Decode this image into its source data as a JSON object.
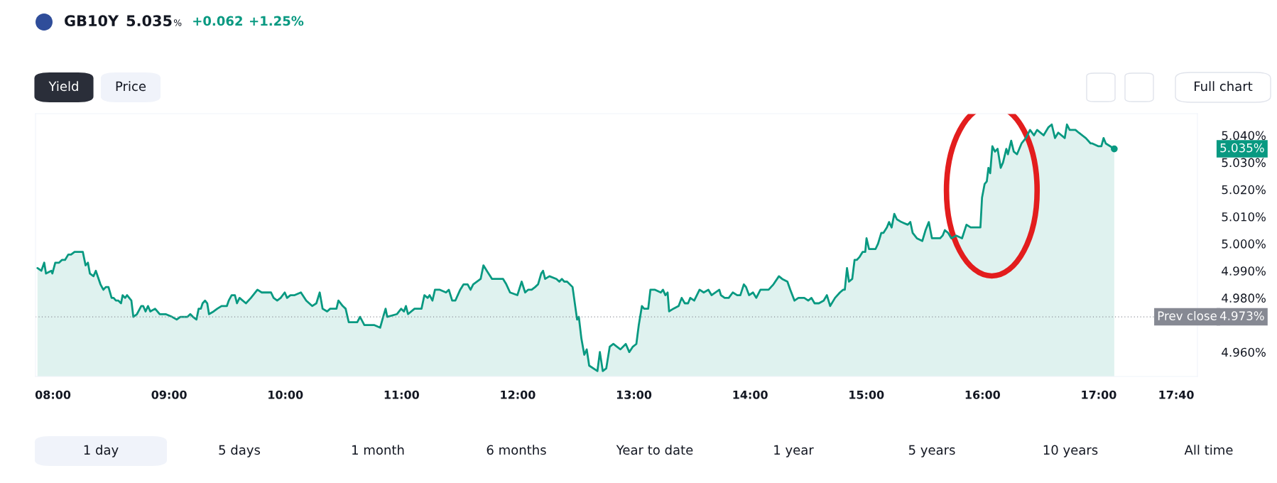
{
  "chart_data": {
    "type": "area",
    "title": "GB10Y",
    "x": [
      7.867,
      7.9,
      7.925,
      7.94,
      7.986,
      7.995,
      8.02,
      8.053,
      8.077,
      8.104,
      8.132,
      8.156,
      8.186,
      8.223,
      8.257,
      8.281,
      8.301,
      8.318,
      8.349,
      8.369,
      8.409,
      8.434,
      8.455,
      8.478,
      8.505,
      8.522,
      8.542,
      8.563,
      8.586,
      8.6,
      8.621,
      8.638,
      8.675,
      8.692,
      8.723,
      8.76,
      8.777,
      8.797,
      8.818,
      8.838,
      8.879,
      8.919,
      8.97,
      9.025,
      9.065,
      9.097,
      9.127,
      9.158,
      9.182,
      9.205,
      9.235,
      9.254,
      9.273,
      9.288,
      9.309,
      9.328,
      9.343,
      9.383,
      9.414,
      9.451,
      9.497,
      9.513,
      9.538,
      9.566,
      9.584,
      9.606,
      9.661,
      9.704,
      9.76,
      9.797,
      9.828,
      9.877,
      9.899,
      9.93,
      9.96,
      9.995,
      10.015,
      10.044,
      10.08,
      10.134,
      10.18,
      10.231,
      10.267,
      10.296,
      10.321,
      10.36,
      10.386,
      10.44,
      10.457,
      10.494,
      10.519,
      10.546,
      10.619,
      10.643,
      10.68,
      10.763,
      10.816,
      10.842,
      10.863,
      10.877,
      10.96,
      10.997,
      11.021,
      11.038,
      11.056,
      11.112,
      11.172,
      11.197,
      11.225,
      11.242,
      11.266,
      11.288,
      11.33,
      11.383,
      11.407,
      11.436,
      11.463,
      11.505,
      11.534,
      11.569,
      11.594,
      11.617,
      11.681,
      11.705,
      11.734,
      11.779,
      11.85,
      11.874,
      11.902,
      11.934,
      11.997,
      12.034,
      12.064,
      12.089,
      12.12,
      12.15,
      12.175,
      12.202,
      12.218,
      12.236,
      12.273,
      12.333,
      12.358,
      12.38,
      12.401,
      12.425,
      12.472,
      12.511,
      12.526,
      12.548,
      12.573,
      12.594,
      12.615,
      12.686,
      12.707,
      12.732,
      12.762,
      12.792,
      12.823,
      12.854,
      12.884,
      12.93,
      12.96,
      12.991,
      13.021,
      13.042,
      13.069,
      13.088,
      13.123,
      13.142,
      13.182,
      13.231,
      13.25,
      13.271,
      13.29,
      13.303,
      13.339,
      13.385,
      13.411,
      13.438,
      13.466,
      13.485,
      13.519,
      13.565,
      13.601,
      13.641,
      13.668,
      13.735,
      13.749,
      13.781,
      13.816,
      13.851,
      13.889,
      13.916,
      13.946,
      13.965,
      13.991,
      14.025,
      14.053,
      14.089,
      14.108,
      14.159,
      14.201,
      14.248,
      14.276,
      14.321,
      14.346,
      14.382,
      14.416,
      14.466,
      14.5,
      14.528,
      14.555,
      14.592,
      14.633,
      14.661,
      14.689,
      14.731,
      14.773,
      14.801,
      14.815,
      14.834,
      14.851,
      14.879,
      14.899,
      14.918,
      14.94,
      14.969,
      14.991,
      15.002,
      15.024,
      15.052,
      15.079,
      15.101,
      15.129,
      15.148,
      15.177,
      15.196,
      15.218,
      15.241,
      15.263,
      15.302,
      15.357,
      15.379,
      15.399,
      15.435,
      15.482,
      15.51,
      15.538,
      15.565,
      15.635,
      15.657,
      15.676,
      15.704,
      15.732,
      15.774,
      15.824,
      15.862,
      15.898,
      15.946,
      15.982,
      15.996,
      16.018,
      16.037,
      16.051,
      16.066,
      16.085,
      16.107,
      16.13,
      16.157,
      16.177,
      16.205,
      16.219,
      16.247,
      16.269,
      16.297,
      16.336,
      16.373,
      16.409,
      16.443,
      16.47,
      16.526,
      16.568,
      16.596,
      16.624,
      16.652,
      16.708,
      16.727,
      16.75,
      16.8,
      16.828,
      16.889,
      16.931,
      16.945,
      16.995,
      17.023,
      17.042,
      17.061,
      17.098,
      17.134
    ],
    "series": [
      {
        "color": "#089981",
        "values": [
          4.991,
          4.99,
          4.993,
          4.989,
          4.99,
          4.989,
          4.993,
          4.993,
          4.994,
          4.994,
          4.996,
          4.996,
          4.997,
          4.997,
          4.997,
          4.992,
          4.993,
          4.989,
          4.988,
          4.99,
          4.985,
          4.983,
          4.984,
          4.984,
          4.98,
          4.98,
          4.979,
          4.979,
          4.978,
          4.981,
          4.98,
          4.981,
          4.979,
          4.973,
          4.974,
          4.977,
          4.977,
          4.975,
          4.977,
          4.975,
          4.976,
          4.974,
          4.974,
          4.973,
          4.972,
          4.973,
          4.973,
          4.973,
          4.974,
          4.973,
          4.972,
          4.976,
          4.976,
          4.978,
          4.979,
          4.978,
          4.974,
          4.975,
          4.976,
          4.977,
          4.977,
          4.979,
          4.981,
          4.981,
          4.978,
          4.98,
          4.978,
          4.98,
          4.983,
          4.982,
          4.982,
          4.982,
          4.98,
          4.979,
          4.98,
          4.982,
          4.98,
          4.981,
          4.981,
          4.982,
          4.979,
          4.977,
          4.978,
          4.982,
          4.976,
          4.975,
          4.976,
          4.976,
          4.979,
          4.977,
          4.976,
          4.971,
          4.971,
          4.973,
          4.97,
          4.97,
          4.969,
          4.973,
          4.976,
          4.973,
          4.974,
          4.976,
          4.975,
          4.977,
          4.974,
          4.976,
          4.976,
          4.981,
          4.98,
          4.981,
          4.979,
          4.983,
          4.983,
          4.982,
          4.983,
          4.979,
          4.979,
          4.983,
          4.985,
          4.985,
          4.983,
          4.985,
          4.987,
          4.992,
          4.99,
          4.987,
          4.987,
          4.987,
          4.985,
          4.982,
          4.981,
          4.986,
          4.982,
          4.983,
          4.983,
          4.984,
          4.985,
          4.989,
          4.99,
          4.987,
          4.988,
          4.987,
          4.986,
          4.987,
          4.986,
          4.986,
          4.984,
          4.972,
          4.973,
          4.965,
          4.959,
          4.961,
          4.955,
          4.953,
          4.96,
          4.953,
          4.954,
          4.962,
          4.963,
          4.962,
          4.961,
          4.963,
          4.96,
          4.962,
          4.963,
          4.97,
          4.977,
          4.976,
          4.976,
          4.983,
          4.983,
          4.982,
          4.983,
          4.981,
          4.982,
          4.975,
          4.976,
          4.977,
          4.98,
          4.978,
          4.978,
          4.98,
          4.979,
          4.983,
          4.982,
          4.983,
          4.981,
          4.983,
          4.981,
          4.98,
          4.98,
          4.982,
          4.981,
          4.981,
          4.985,
          4.984,
          4.981,
          4.982,
          4.98,
          4.983,
          4.983,
          4.983,
          4.985,
          4.988,
          4.987,
          4.986,
          4.983,
          4.979,
          4.98,
          4.98,
          4.979,
          4.98,
          4.978,
          4.978,
          4.979,
          4.981,
          4.977,
          4.98,
          4.982,
          4.983,
          4.983,
          4.991,
          4.986,
          4.987,
          4.994,
          4.994,
          4.995,
          4.997,
          4.997,
          5.002,
          4.998,
          4.998,
          4.998,
          5.0,
          5.004,
          5.004,
          5.006,
          5.008,
          5.006,
          5.011,
          5.009,
          5.008,
          5.007,
          5.008,
          5.004,
          5.002,
          5.001,
          5.005,
          5.008,
          5.002,
          5.002,
          5.003,
          5.005,
          5.004,
          5.002,
          5.003,
          5.002,
          5.007,
          5.006,
          5.006,
          5.006,
          5.017,
          5.022,
          5.023,
          5.028,
          5.026,
          5.036,
          5.034,
          5.035,
          5.028,
          5.03,
          5.035,
          5.033,
          5.038,
          5.034,
          5.033,
          5.037,
          5.039,
          5.042,
          5.04,
          5.042,
          5.04,
          5.043,
          5.044,
          5.039,
          5.041,
          5.039,
          5.044,
          5.042,
          5.042,
          5.041,
          5.039,
          5.037,
          5.037,
          5.036,
          5.036,
          5.039,
          5.037,
          5.036,
          5.035
        ]
      }
    ],
    "xlim": [
      7.85,
      17.85
    ],
    "ylim": [
      4.951,
      5.048
    ],
    "xticks": [
      {
        "value": 8,
        "label": "08:00"
      },
      {
        "value": 9,
        "label": "09:00"
      },
      {
        "value": 10,
        "label": "10:00"
      },
      {
        "value": 11,
        "label": "11:00"
      },
      {
        "value": 12,
        "label": "12:00"
      },
      {
        "value": 13,
        "label": "13:00"
      },
      {
        "value": 14,
        "label": "14:00"
      },
      {
        "value": 15,
        "label": "15:00"
      },
      {
        "value": 16,
        "label": "16:00"
      },
      {
        "value": 17,
        "label": "17:00"
      },
      {
        "value": 17.667,
        "label": "17:40"
      }
    ],
    "yticks": [
      {
        "value": 4.96,
        "label": "4.960%"
      },
      {
        "value": 4.98,
        "label": "4.980%"
      },
      {
        "value": 4.99,
        "label": "4.990%"
      },
      {
        "value": 5.0,
        "label": "5.000%"
      },
      {
        "value": 5.01,
        "label": "5.010%"
      },
      {
        "value": 5.02,
        "label": "5.020%"
      },
      {
        "value": 5.03,
        "label": "5.030%"
      },
      {
        "value": 5.04,
        "label": "5.040%"
      }
    ],
    "ref_lines": [
      {
        "axis": "y",
        "value": 4.973,
        "label": "Prev close",
        "color": "#868993",
        "line_style": "dotted"
      }
    ],
    "annotations": [
      "5.035",
      "%",
      "+0.062",
      "+1.25%",
      "Yield",
      "Price",
      "Full chart",
      "1 day",
      "5 days",
      "1 month",
      "6 months",
      "Year to date",
      "1 year",
      "5 years",
      "10 years",
      "All time",
      "5.035%",
      "4.973%"
    ]
  }
}
